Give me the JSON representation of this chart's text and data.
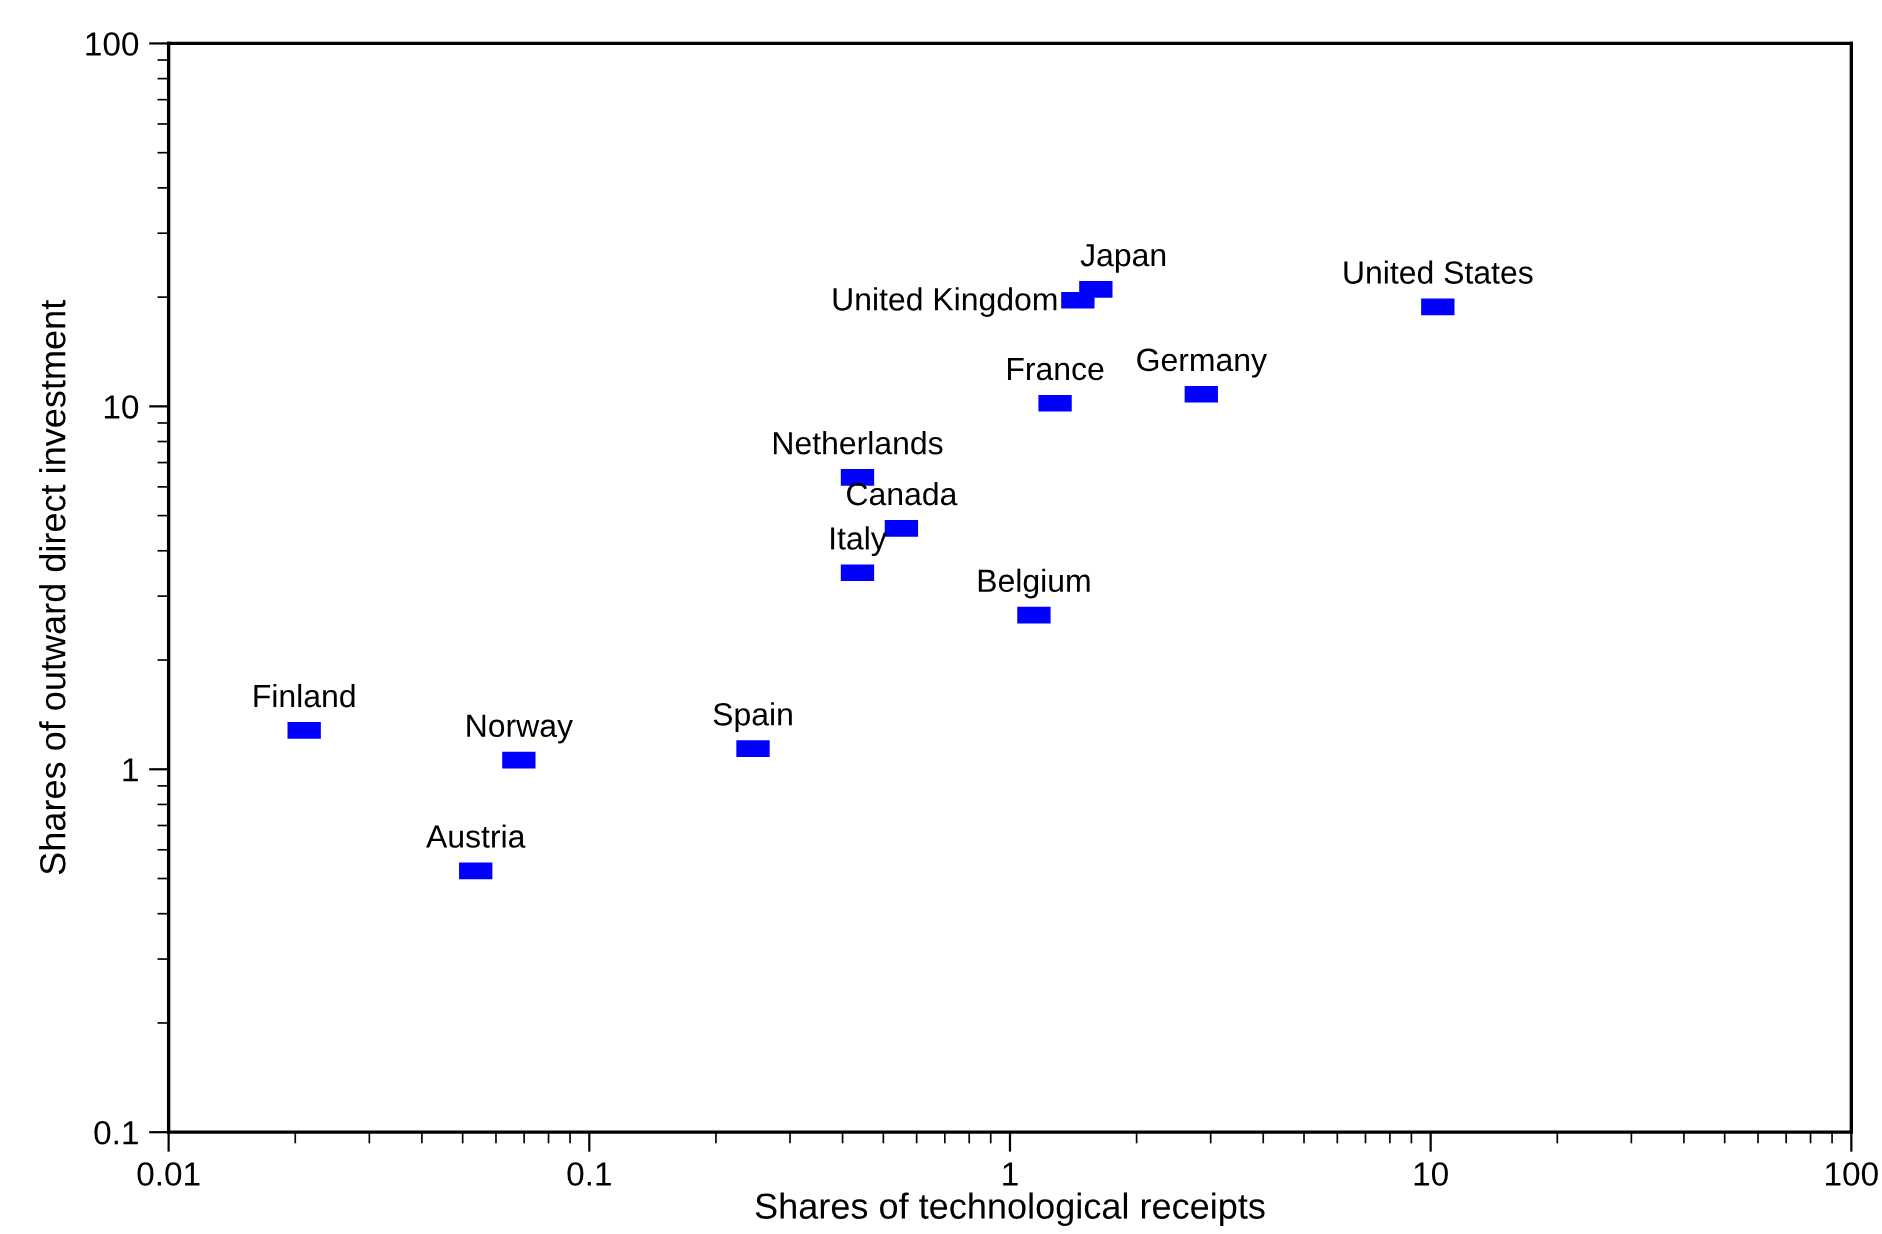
{
  "chart_data": {
    "type": "scatter",
    "xlabel": "Shares of technological receipts",
    "ylabel": "Shares of outward direct investment",
    "log": "xy",
    "marker": "square",
    "grid": false,
    "legend": false,
    "xlim": [
      0.01,
      100
    ],
    "ylim": [
      0.1,
      100
    ],
    "xticks": [
      0.01,
      0.1,
      1,
      10,
      100
    ],
    "yticks": [
      0.1,
      1,
      10,
      100
    ],
    "series": [
      {
        "color": "#0000ff",
        "x": [
          0.021,
          0.068,
          0.0537,
          0.245,
          0.434,
          0.434,
          0.552,
          1.45,
          1.6,
          1.28,
          2.85,
          10.4,
          1.14
        ],
        "values": [
          1.28,
          1.06,
          0.525,
          1.14,
          6.37,
          3.48,
          4.61,
          19.6,
          21.0,
          10.2,
          10.8,
          18.8,
          2.66
        ]
      }
    ],
    "annotations": [
      {
        "text": "Finland",
        "x": 0.021,
        "y": 1.28
      },
      {
        "text": "Norway",
        "x": 0.068,
        "y": 1.06
      },
      {
        "text": "Austria",
        "x": 0.0537,
        "y": 0.525
      },
      {
        "text": "Spain",
        "x": 0.245,
        "y": 1.14
      },
      {
        "text": "Netherlands",
        "x": 0.434,
        "y": 6.37
      },
      {
        "text": "Italy",
        "x": 0.434,
        "y": 3.48
      },
      {
        "text": "Canada",
        "x": 0.552,
        "y": 4.61
      },
      {
        "text": "United Kingdom",
        "x": 1.45,
        "y": 19.6
      },
      {
        "text": "Japan",
        "x": 1.6,
        "y": 21.0
      },
      {
        "text": "France",
        "x": 1.28,
        "y": 10.2
      },
      {
        "text": "Germany",
        "x": 2.85,
        "y": 10.8
      },
      {
        "text": "United States",
        "x": 10.4,
        "y": 18.8
      },
      {
        "text": "Belgium",
        "x": 1.14,
        "y": 2.66
      }
    ]
  }
}
